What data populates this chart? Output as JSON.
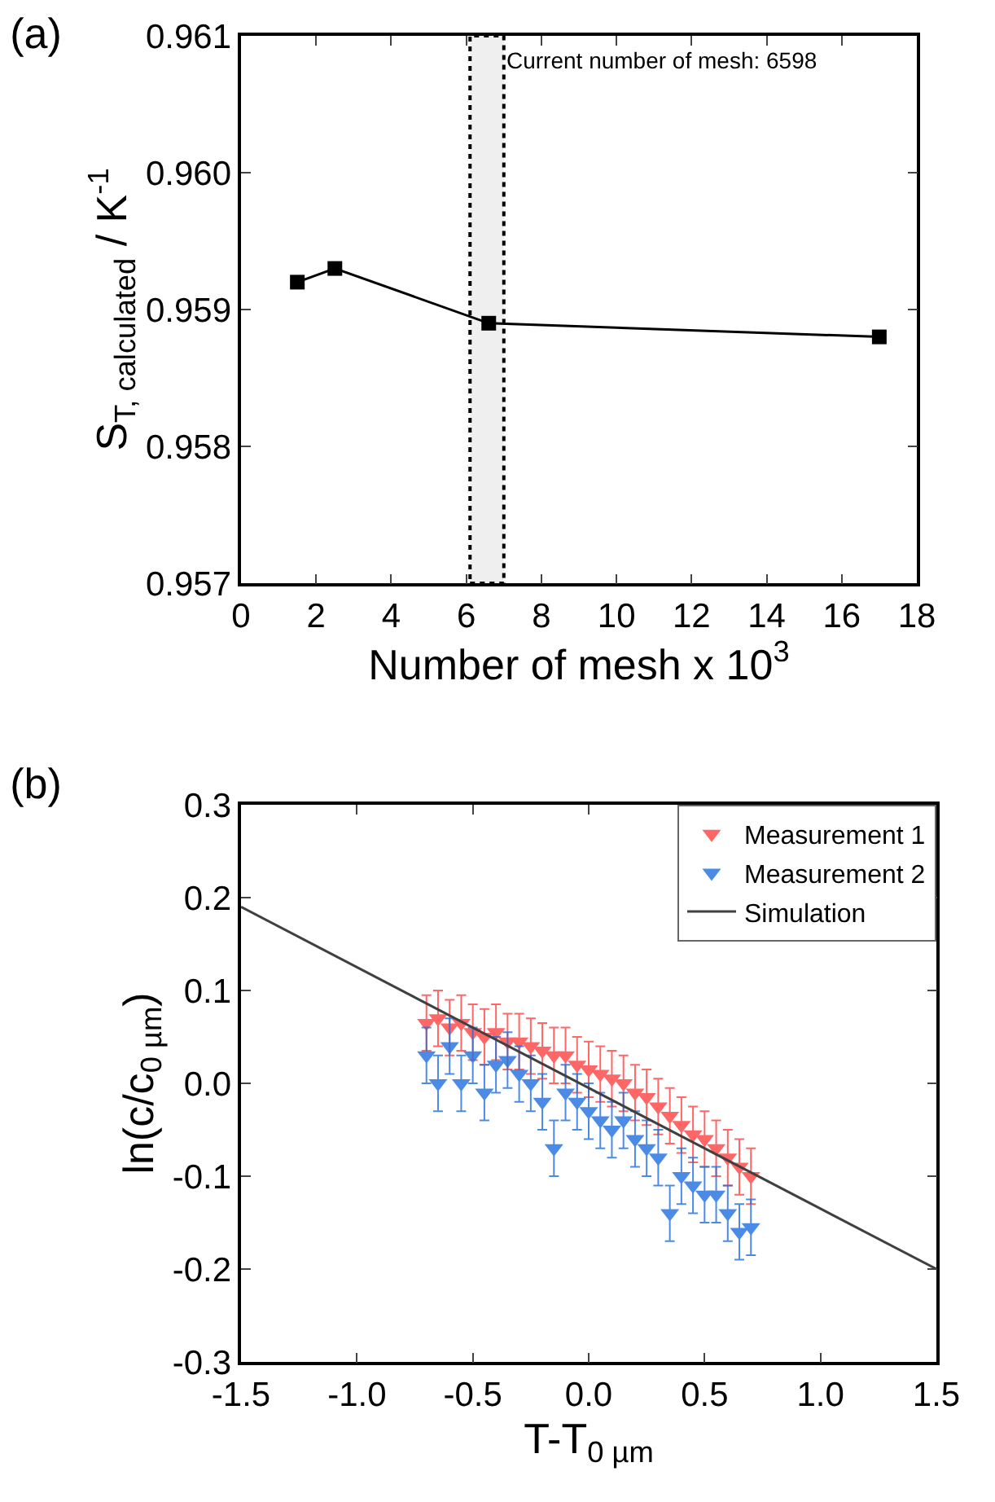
{
  "chart_data": [
    {
      "type": "line",
      "title": "(a)",
      "xlabel": "Number of mesh x 10$^{3}$",
      "ylabel": "S$_{T, calculated}$ / K$^{-1}$",
      "x": [
        1.5,
        2.5,
        6.598,
        17
      ],
      "series": [
        {
          "color": "#000000",
          "values": [
            0.9592,
            0.9593,
            0.9589,
            0.9588
          ]
        }
      ],
      "xlim": [
        0,
        18
      ],
      "xticks": [
        0,
        2,
        4,
        6,
        8,
        10,
        12,
        14,
        16,
        18
      ],
      "ylim": [
        0.957,
        0.961
      ],
      "yticks": [
        {
          "value": 0.957,
          "label": "0.957"
        },
        {
          "value": 0.958,
          "label": "0.958"
        },
        {
          "value": 0.959,
          "label": "0.959"
        },
        {
          "value": 0.96,
          "label": "0.960"
        },
        {
          "value": 0.961,
          "label": "0.961"
        }
      ],
      "marker": "square",
      "line_style": "solid",
      "grid": false,
      "legend": false,
      "bands": [
        {
          "axis": "x",
          "from": 6.1,
          "to": 7.0,
          "label": "Current number of mesh: 6598",
          "color": "#000000"
        }
      ]
    },
    {
      "type": "scatter",
      "title": "(b)",
      "xlabel": "T-T$_{0 µm}$",
      "ylabel": "ln(c/c$_{0 µm}$)",
      "x": [
        -0.7,
        -0.65,
        -0.6,
        -0.55,
        -0.5,
        -0.45,
        -0.4,
        -0.35,
        -0.3,
        -0.25,
        -0.2,
        -0.15,
        -0.1,
        -0.05,
        0,
        0.05,
        0.1,
        0.15,
        0.2,
        0.25,
        0.3,
        0.35,
        0.4,
        0.45,
        0.5,
        0.55,
        0.6,
        0.65,
        0.7
      ],
      "series": [
        {
          "name": "Measurement 1",
          "color": "#ff4040",
          "values": [
            0.065,
            0.07,
            0.06,
            0.065,
            0.055,
            0.05,
            0.055,
            0.045,
            0.045,
            0.04,
            0.035,
            0.03,
            0.03,
            0.02,
            0.015,
            0.01,
            0.005,
            0,
            -0.01,
            -0.015,
            -0.025,
            -0.035,
            -0.045,
            -0.055,
            -0.06,
            -0.07,
            -0.08,
            -0.09,
            -0.1
          ],
          "errors": [
            0.03,
            0.03,
            0.03,
            0.03,
            0.03,
            0.03,
            0.03,
            0.03,
            0.03,
            0.03,
            0.03,
            0.03,
            0.03,
            0.03,
            0.03,
            0.03,
            0.03,
            0.03,
            0.03,
            0.03,
            0.03,
            0.03,
            0.03,
            0.03,
            0.03,
            0.03,
            0.03,
            0.03,
            0.03
          ]
        },
        {
          "name": "Measurement 2",
          "color": "#1f6fe0",
          "values": [
            0.03,
            0,
            0.04,
            0,
            0.03,
            -0.01,
            0.02,
            0.025,
            0.01,
            0,
            -0.02,
            -0.07,
            -0.01,
            -0.02,
            -0.03,
            -0.04,
            -0.05,
            -0.04,
            -0.06,
            -0.07,
            -0.08,
            -0.14,
            -0.1,
            -0.11,
            -0.12,
            -0.12,
            -0.14,
            -0.16,
            -0.155
          ],
          "errors": [
            0.03,
            0.03,
            0.03,
            0.03,
            0.03,
            0.03,
            0.03,
            0.03,
            0.03,
            0.03,
            0.03,
            0.03,
            0.03,
            0.03,
            0.03,
            0.03,
            0.03,
            0.03,
            0.03,
            0.03,
            0.03,
            0.03,
            0.03,
            0.03,
            0.03,
            0.03,
            0.03,
            0.03,
            0.03
          ]
        },
        {
          "name": "Simulation",
          "type": "line",
          "marker": "none",
          "color": "#404040",
          "x": [
            -1.5,
            1.5
          ],
          "values": [
            0.19,
            -0.2
          ]
        }
      ],
      "xlim": [
        -1.5,
        1.5
      ],
      "xticks": [
        {
          "value": -1.5,
          "label": "-1.5"
        },
        {
          "value": -1,
          "label": "-1.0"
        },
        {
          "value": -0.5,
          "label": "-0.5"
        },
        {
          "value": 0,
          "label": "0.0"
        },
        {
          "value": 0.5,
          "label": "0.5"
        },
        {
          "value": 1,
          "label": "1.0"
        },
        {
          "value": 1.5,
          "label": "1.5"
        }
      ],
      "ylim": [
        -0.3,
        0.3
      ],
      "yticks": [
        {
          "value": -0.3,
          "label": "-0.3"
        },
        {
          "value": -0.2,
          "label": "-0.2"
        },
        {
          "value": -0.1,
          "label": "-0.1"
        },
        {
          "value": 0,
          "label": "0.0"
        },
        {
          "value": 0.1,
          "label": "0.1"
        },
        {
          "value": 0.2,
          "label": "0.2"
        },
        {
          "value": 0.3,
          "label": "0.3"
        }
      ],
      "marker": "triangle",
      "grid": false,
      "legend": "top right"
    }
  ]
}
